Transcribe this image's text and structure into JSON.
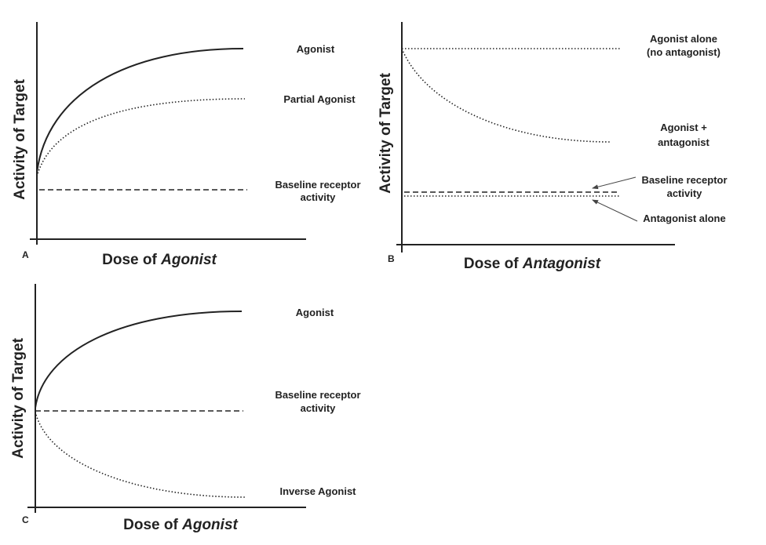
{
  "panels": [
    {
      "letter": "A",
      "y_label": "Activity of Target",
      "x_label": [
        "Dose of",
        "Agonist"
      ],
      "curve_labels": [
        "Agonist",
        "Partial Agonist",
        [
          "Baseline receptor",
          "activity"
        ]
      ]
    },
    {
      "letter": "B",
      "y_label": "Activity of Target",
      "x_label": [
        "Dose of",
        "Antagonist"
      ],
      "curve_labels": [
        [
          "Agonist alone",
          "(no antagonist)"
        ],
        [
          "Agonist +",
          "antagonist"
        ],
        [
          "Baseline receptor",
          "activity"
        ],
        "Antagonist alone"
      ]
    },
    {
      "letter": "C",
      "y_label": "Activity of Target",
      "x_label": [
        "Dose of",
        "Agonist"
      ],
      "curve_labels": [
        "Agonist",
        [
          "Baseline receptor",
          "activity"
        ],
        "Inverse Agonist"
      ]
    }
  ]
}
